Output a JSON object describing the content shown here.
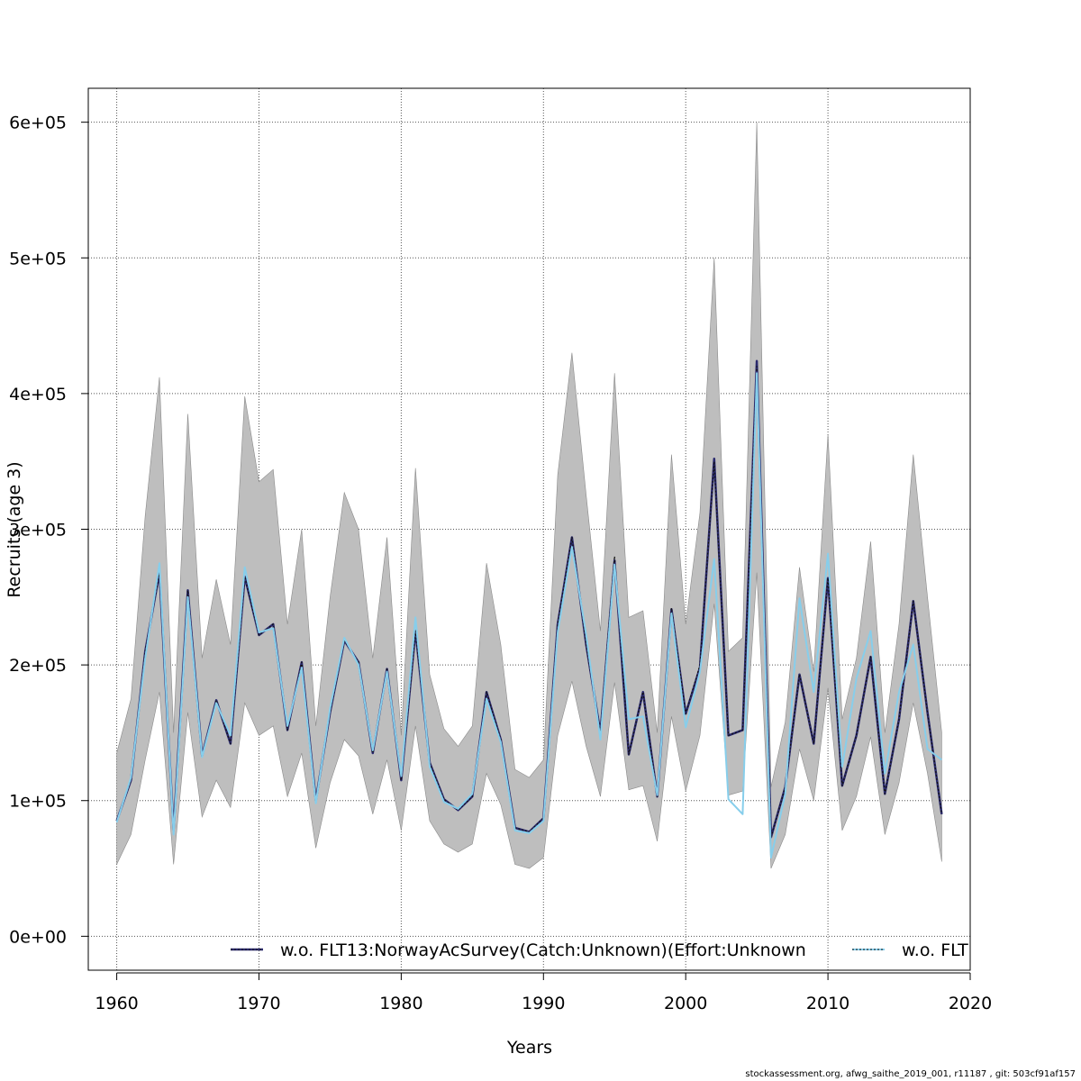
{
  "chart_data": {
    "type": "line",
    "title": "",
    "xlabel": "Years",
    "ylabel": "Recruits (age 3)",
    "xlim": [
      1958,
      2020
    ],
    "ylim": [
      -25000,
      625000
    ],
    "x_ticks": [
      1960,
      1970,
      1980,
      1990,
      2000,
      2010,
      2020
    ],
    "x_tick_labels": [
      "1960",
      "1970",
      "1980",
      "1990",
      "2000",
      "2010",
      "2020"
    ],
    "y_ticks": [
      0,
      100000,
      200000,
      300000,
      400000,
      500000,
      600000
    ],
    "y_tick_labels": [
      "0e+00",
      "1e+05",
      "2e+05",
      "3e+05",
      "4e+05",
      "5e+05",
      "6e+05"
    ],
    "grid": true,
    "legend_position": "bottom",
    "x": [
      1960,
      1961,
      1962,
      1963,
      1964,
      1965,
      1966,
      1967,
      1968,
      1969,
      1970,
      1971,
      1972,
      1973,
      1974,
      1975,
      1976,
      1977,
      1978,
      1979,
      1980,
      1981,
      1982,
      1983,
      1984,
      1985,
      1986,
      1987,
      1988,
      1989,
      1990,
      1991,
      1992,
      1993,
      1994,
      1995,
      1996,
      1997,
      1998,
      1999,
      2000,
      2001,
      2002,
      2003,
      2004,
      2005,
      2006,
      2007,
      2008,
      2009,
      2010,
      2011,
      2012,
      2013,
      2014,
      2015,
      2016,
      2017,
      2018
    ],
    "band": {
      "color": "#bebebe",
      "upper": [
        135000,
        175000,
        310000,
        412000,
        150000,
        385000,
        205000,
        263000,
        215000,
        398000,
        335000,
        344000,
        230000,
        300000,
        155000,
        250000,
        327000,
        300000,
        205000,
        294000,
        148000,
        345000,
        193000,
        153000,
        140000,
        155000,
        275000,
        215000,
        123000,
        117000,
        130000,
        340000,
        430000,
        325000,
        225000,
        415000,
        235000,
        240000,
        150000,
        355000,
        230000,
        312000,
        500000,
        210000,
        220000,
        600000,
        110000,
        158000,
        272000,
        195000,
        370000,
        160000,
        205000,
        291000,
        150000,
        230000,
        355000,
        250000,
        150000
      ],
      "lower": [
        53000,
        75000,
        130000,
        180000,
        53000,
        165000,
        88000,
        115000,
        95000,
        172000,
        148000,
        155000,
        103000,
        135000,
        65000,
        113000,
        145000,
        133000,
        90000,
        130000,
        78000,
        155000,
        85000,
        68000,
        62000,
        68000,
        120000,
        97000,
        53000,
        50000,
        58000,
        148000,
        188000,
        140000,
        103000,
        187000,
        108000,
        111000,
        70000,
        162000,
        107000,
        148000,
        245000,
        104000,
        107000,
        268000,
        50000,
        75000,
        138000,
        100000,
        183000,
        78000,
        103000,
        147000,
        75000,
        113000,
        172000,
        120000,
        55000
      ]
    },
    "series": [
      {
        "name": "w.o. FLT13:NorwayAcSurvey(Catch:Unknown)(Effort:Unknown",
        "color": "#2b2a6e",
        "width": 2.5,
        "dash": "",
        "values": [
          85000,
          115000,
          210000,
          268000,
          78000,
          255000,
          133000,
          174000,
          142000,
          265000,
          222000,
          230000,
          152000,
          202000,
          100000,
          165000,
          218000,
          202000,
          135000,
          197000,
          115000,
          225000,
          128000,
          101000,
          93000,
          103000,
          180000,
          145000,
          80000,
          77000,
          87000,
          230000,
          294000,
          215000,
          150000,
          277000,
          134000,
          180000,
          103000,
          241000,
          164000,
          198000,
          352000,
          148000,
          152000,
          424000,
          73000,
          110000,
          193000,
          142000,
          264000,
          111000,
          148000,
          206000,
          105000,
          160000,
          247000,
          165000,
          90000
        ]
      },
      {
        "name": "",
        "color": "#111111",
        "width": 1.2,
        "dash": "2,2",
        "values": [
          85000,
          115000,
          210000,
          268000,
          78000,
          255000,
          133000,
          174000,
          142000,
          265000,
          222000,
          230000,
          152000,
          202000,
          100000,
          165000,
          218000,
          202000,
          135000,
          197000,
          115000,
          225000,
          128000,
          101000,
          93000,
          103000,
          180000,
          145000,
          80000,
          77000,
          87000,
          230000,
          294000,
          215000,
          150000,
          280000,
          134000,
          180000,
          103000,
          242000,
          164000,
          200000,
          350000,
          148000,
          152000,
          420000,
          73000,
          110000,
          193000,
          142000,
          264000,
          111000,
          148000,
          206000,
          105000,
          160000,
          247000,
          165000,
          90000
        ]
      },
      {
        "name": "w.o. FLT",
        "color": "#87ceeb",
        "width": 2,
        "dash": "",
        "values": [
          84000,
          117000,
          205000,
          275000,
          75000,
          250000,
          132000,
          172000,
          148000,
          272000,
          224000,
          227000,
          155000,
          198000,
          98000,
          168000,
          220000,
          200000,
          137000,
          195000,
          118000,
          235000,
          125000,
          99000,
          94000,
          105000,
          175000,
          143000,
          78000,
          76000,
          85000,
          224000,
          287000,
          222000,
          145000,
          274000,
          160000,
          162000,
          104000,
          238000,
          154000,
          195000,
          278000,
          101000,
          90000,
          415000,
          58000,
          105000,
          249000,
          180000,
          282000,
          125000,
          190000,
          225000,
          120000,
          180000,
          215000,
          138000,
          130000
        ]
      }
    ]
  },
  "footer": "stockassessment.org, afwg_saithe_2019_001, r11187 , git: 503cf91af157"
}
